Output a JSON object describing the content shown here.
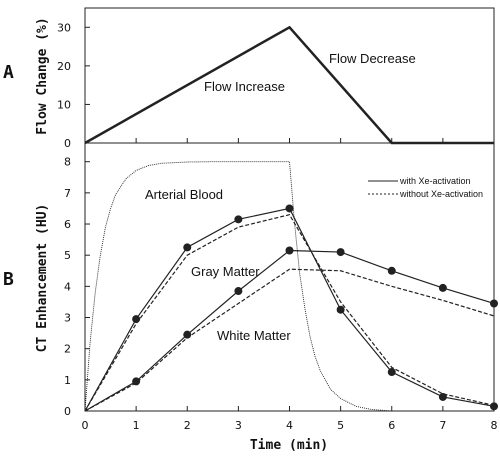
{
  "chart_data": [
    {
      "panel": "A",
      "type": "line",
      "ylabel": "Flow Change (%)",
      "xlim": [
        0,
        8
      ],
      "ylim": [
        0,
        35
      ],
      "yticks": [
        0,
        10,
        20,
        30
      ],
      "grid": false,
      "series": [
        {
          "x": [
            0,
            4,
            6,
            8
          ],
          "y": [
            0,
            30,
            0,
            0
          ],
          "style": "solid",
          "color": "#222222"
        }
      ],
      "annotations": [
        {
          "text": "Flow Increase",
          "x": 4.05,
          "y": 15
        },
        {
          "text": "Flow Decrease",
          "x": 5.7,
          "y": 23
        }
      ]
    },
    {
      "panel": "B",
      "type": "line",
      "xlabel": "Time (min)",
      "ylabel": "CT Enhancement (HU)",
      "xlim": [
        0,
        8
      ],
      "ylim": [
        0,
        8.6
      ],
      "xticks": [
        0,
        1,
        2,
        3,
        4,
        5,
        6,
        7,
        8
      ],
      "yticks": [
        0,
        1,
        2,
        3,
        4,
        5,
        6,
        7,
        8
      ],
      "grid": false,
      "legend": {
        "position": "top-right",
        "entries": [
          {
            "label": "with Xe-activation",
            "style": "solid"
          },
          {
            "label": "without Xe-activation",
            "style": "dotted"
          }
        ]
      },
      "series": [
        {
          "style": "dotted-fine",
          "x": [
            0,
            0.1,
            0.2,
            0.3,
            0.4,
            0.5,
            0.6,
            0.8,
            1.0,
            1.25,
            1.5,
            2.0,
            2.5,
            3.0,
            3.5,
            4.0,
            4.05,
            4.1,
            4.2,
            4.3,
            4.4,
            4.5,
            4.6,
            4.8,
            5.0,
            5.3,
            5.6,
            6.0
          ],
          "y": [
            0,
            2.2,
            3.8,
            5.0,
            5.9,
            6.5,
            6.95,
            7.45,
            7.72,
            7.88,
            7.95,
            7.99,
            8.0,
            8.0,
            8.0,
            8.0,
            7.0,
            6.0,
            4.4,
            3.3,
            2.4,
            1.75,
            1.3,
            0.7,
            0.4,
            0.15,
            0.05,
            0
          ]
        },
        {
          "style": "solid",
          "markers": true,
          "x": [
            0,
            1,
            2,
            3,
            4,
            5,
            6,
            7,
            8
          ],
          "y": [
            0,
            2.95,
            5.25,
            6.15,
            6.5,
            3.25,
            1.25,
            0.45,
            0.15
          ]
        },
        {
          "style": "dashed",
          "x": [
            0,
            1,
            2,
            3,
            4,
            5,
            6,
            7,
            8
          ],
          "y": [
            0,
            2.8,
            5.0,
            5.9,
            6.3,
            3.5,
            1.4,
            0.55,
            0.18
          ]
        },
        {
          "style": "solid",
          "markers": true,
          "x": [
            0,
            1,
            2,
            3,
            4,
            5,
            6,
            7,
            8
          ],
          "y": [
            0,
            0.95,
            2.45,
            3.85,
            5.15,
            5.1,
            4.5,
            3.95,
            3.45
          ]
        },
        {
          "style": "dashed",
          "x": [
            0,
            1,
            2,
            3,
            4,
            5,
            6,
            7,
            8
          ],
          "y": [
            0,
            0.9,
            2.35,
            3.45,
            4.55,
            4.5,
            4.0,
            3.55,
            3.05
          ]
        }
      ],
      "annotations": [
        {
          "text": "Arterial Blood",
          "x": 1.2,
          "y": 7.45
        },
        {
          "text": "Gray Matter",
          "x": 2.05,
          "y": 4.45
        },
        {
          "text": "White Matter",
          "x": 2.65,
          "y": 2.4
        }
      ]
    }
  ],
  "labels": {
    "panel_a": "A",
    "panel_b": "B",
    "ylabel_a": "Flow Change (%)",
    "ylabel_b": "CT Enhancement (HU)",
    "xlabel": "Time (min)",
    "legend_with": "with Xe-activation",
    "legend_without": "without Xe-activation",
    "flow_increase": "Flow Increase",
    "flow_decrease": "Flow Decrease",
    "arterial_blood": "Arterial Blood",
    "gray_matter": "Gray Matter",
    "white_matter": "White Matter"
  }
}
